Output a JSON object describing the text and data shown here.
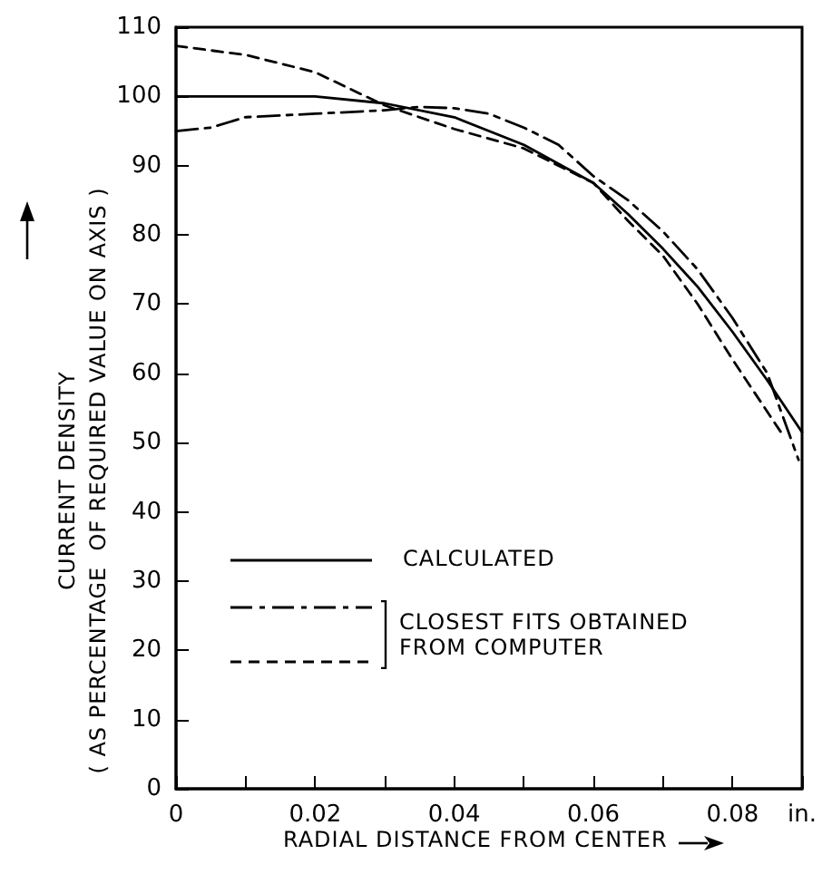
{
  "chart_data": {
    "type": "line",
    "xlabel": "RADIAL DISTANCE FROM CENTER",
    "ylabel": "CURRENT DENSITY\n( AS PERCENTAGE  OF REQUIRED VALUE ON AXIS )",
    "xlim": [
      0,
      0.09
    ],
    "xticks": [
      0,
      {
        "value": 0.01,
        "label": null
      },
      0.02,
      {
        "value": 0.03,
        "label": null
      },
      0.04,
      {
        "value": 0.05,
        "label": null
      },
      0.06,
      {
        "value": 0.07,
        "label": null
      },
      0.08,
      {
        "value": 0.09,
        "label": "in."
      }
    ],
    "ylim": [
      0,
      110
    ],
    "yticks": [
      0,
      10,
      20,
      30,
      40,
      50,
      60,
      70,
      80,
      90,
      100,
      110
    ],
    "grid": false,
    "legend": "bottom left",
    "marker": "none",
    "annotations": [
      "CLOSEST FITS OBTAINED\nFROM COMPUTER"
    ],
    "series": [
      {
        "name": "CALCULATED",
        "color": "#000000",
        "line_style": "solid",
        "x": [
          0,
          0.01,
          0.02,
          0.03,
          0.04,
          0.05,
          0.06,
          0.065,
          0.07,
          0.075,
          0.08,
          0.085,
          0.09
        ],
        "values": [
          100,
          100,
          100,
          99,
          97,
          93,
          87.5,
          83,
          78,
          72.5,
          66,
          59,
          51.5
        ]
      },
      {
        "color": "#000000",
        "line_style": "dashdot",
        "x": [
          0,
          0.005,
          0.01,
          0.02,
          0.03,
          0.035,
          0.04,
          0.045,
          0.05,
          0.055,
          0.06,
          0.065,
          0.07,
          0.075,
          0.08,
          0.085,
          0.0895
        ],
        "values": [
          95,
          95.5,
          97,
          97.5,
          98,
          98.5,
          98.3,
          97.5,
          95.5,
          93,
          88.5,
          85,
          80.5,
          75,
          68,
          60,
          47.5
        ]
      },
      {
        "color": "#000000",
        "line_style": "dashed",
        "x": [
          0,
          0.01,
          0.02,
          0.03,
          0.04,
          0.05,
          0.06,
          0.065,
          0.07,
          0.075,
          0.08,
          0.0873
        ],
        "values": [
          107.3,
          106,
          103.5,
          98.7,
          95.3,
          92.5,
          87.5,
          82,
          77,
          70,
          62,
          51
        ]
      }
    ]
  }
}
